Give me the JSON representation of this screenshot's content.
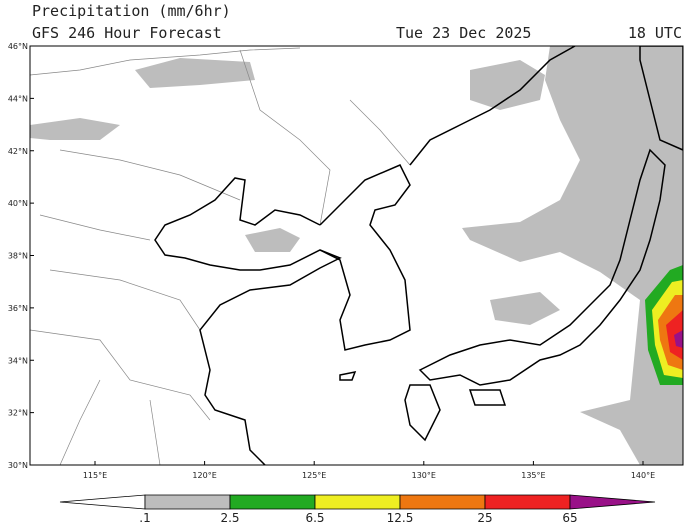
{
  "header": {
    "title": "Precipitation (mm/6hr)",
    "subtitle": "GFS 246 Hour Forecast",
    "date": "Tue 23 Dec 2025",
    "time": "18 UTC"
  },
  "map": {
    "lat_labels": [
      "30°N",
      "32°N",
      "34°N",
      "36°N",
      "38°N",
      "40°N",
      "42°N",
      "44°N",
      "46°N"
    ],
    "lon_labels": [
      "115°E",
      "120°E",
      "125°E",
      "130°E",
      "135°E",
      "140°E"
    ]
  },
  "colorbar": {
    "labels": [
      ".1",
      "2.5",
      "6.5",
      "12.5",
      "25",
      "65"
    ],
    "colors": [
      "#ffffff",
      "#bdbdbd",
      "#22aa22",
      "#eeee22",
      "#ee7711",
      "#ee2222",
      "#991188"
    ]
  }
}
